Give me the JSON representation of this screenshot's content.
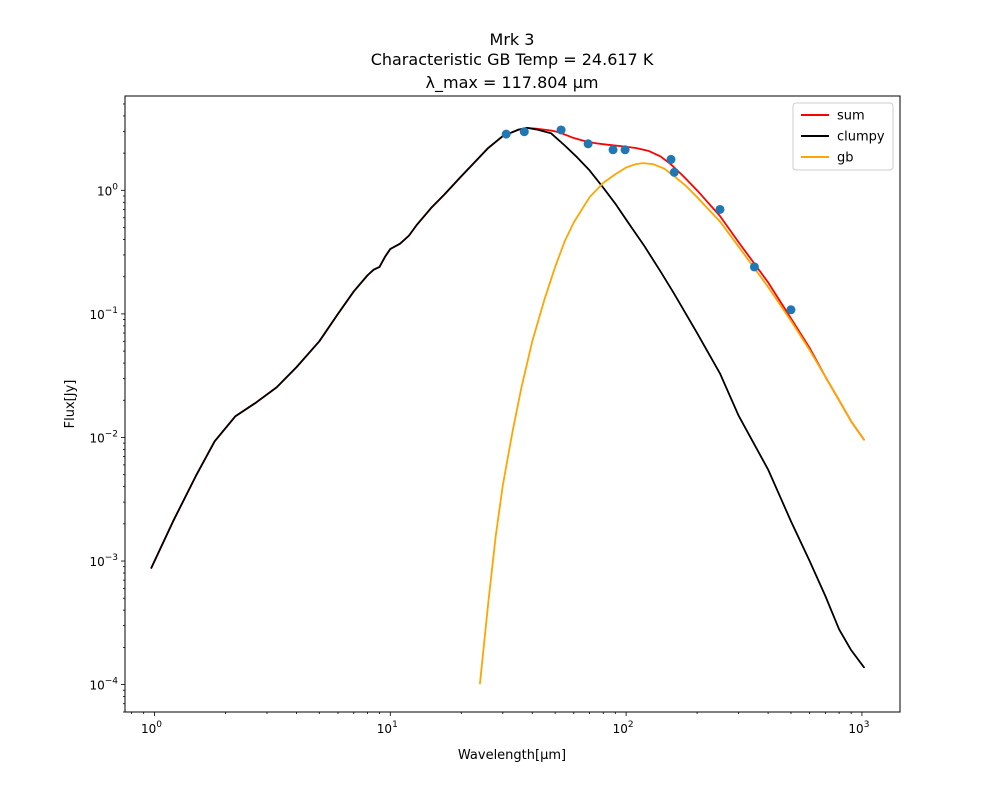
{
  "chart_data": {
    "type": "line",
    "title": [
      "Mrk 3",
      "Characteristic GB Temp = 24.617 K",
      "λ_max = 117.804 μm"
    ],
    "xlabel": "Wavelength[μm]",
    "ylabel": "Flux[Jy]",
    "xscale": "log",
    "yscale": "log",
    "xlim": [
      0.75,
      1450
    ],
    "ylim": [
      6e-05,
      5.8
    ],
    "grid": false,
    "legend_position": "top-right",
    "x_ticks": [
      {
        "value": 1,
        "base": "10",
        "exp": "0"
      },
      {
        "value": 10,
        "base": "10",
        "exp": "1"
      },
      {
        "value": 100,
        "base": "10",
        "exp": "2"
      },
      {
        "value": 1000,
        "base": "10",
        "exp": "3"
      }
    ],
    "y_ticks": [
      {
        "value": 0.0001,
        "base": "10",
        "exp": "−4"
      },
      {
        "value": 0.001,
        "base": "10",
        "exp": "−3"
      },
      {
        "value": 0.01,
        "base": "10",
        "exp": "−2"
      },
      {
        "value": 0.1,
        "base": "10",
        "exp": "−1"
      },
      {
        "value": 1,
        "base": "10",
        "exp": "0"
      }
    ],
    "series": [
      {
        "name": "sum",
        "color": "#ff0000",
        "points": [
          [
            0.97,
            0.00088
          ],
          [
            1.2,
            0.0021
          ],
          [
            1.5,
            0.0049
          ],
          [
            1.8,
            0.0093
          ],
          [
            2.2,
            0.0148
          ],
          [
            2.7,
            0.0192
          ],
          [
            3.3,
            0.0255
          ],
          [
            4.0,
            0.037
          ],
          [
            5.0,
            0.06
          ],
          [
            6.0,
            0.1
          ],
          [
            7.0,
            0.152
          ],
          [
            8.0,
            0.205
          ],
          [
            8.5,
            0.228
          ],
          [
            9.0,
            0.24
          ],
          [
            9.5,
            0.29
          ],
          [
            10.0,
            0.335
          ],
          [
            11.0,
            0.37
          ],
          [
            12.0,
            0.43
          ],
          [
            13.0,
            0.53
          ],
          [
            15.0,
            0.73
          ],
          [
            17.0,
            0.93
          ],
          [
            20.0,
            1.3
          ],
          [
            23.0,
            1.72
          ],
          [
            26.0,
            2.2
          ],
          [
            30.0,
            2.75
          ],
          [
            35.0,
            3.1
          ],
          [
            38.0,
            3.2
          ],
          [
            42.0,
            3.15
          ],
          [
            48.0,
            3.05
          ],
          [
            52.0,
            2.95
          ],
          [
            60.0,
            2.65
          ],
          [
            68.0,
            2.48
          ],
          [
            75.0,
            2.4
          ],
          [
            85.0,
            2.33
          ],
          [
            95.0,
            2.28
          ],
          [
            110.0,
            2.2
          ],
          [
            125.0,
            2.08
          ],
          [
            140.0,
            1.88
          ],
          [
            155.0,
            1.62
          ],
          [
            175.0,
            1.3
          ],
          [
            200.0,
            1.0
          ],
          [
            250.0,
            0.62
          ],
          [
            300.0,
            0.38
          ],
          [
            400.0,
            0.18
          ],
          [
            500.0,
            0.092
          ],
          [
            600.0,
            0.053
          ],
          [
            700.0,
            0.031
          ],
          [
            800.0,
            0.02
          ],
          [
            900.0,
            0.0135
          ],
          [
            1020.0,
            0.0096
          ]
        ]
      },
      {
        "name": "clumpy",
        "color": "#000000",
        "points": [
          [
            0.97,
            0.00088
          ],
          [
            1.2,
            0.0021
          ],
          [
            1.5,
            0.0049
          ],
          [
            1.8,
            0.0093
          ],
          [
            2.2,
            0.0148
          ],
          [
            2.7,
            0.0192
          ],
          [
            3.3,
            0.0255
          ],
          [
            4.0,
            0.037
          ],
          [
            5.0,
            0.06
          ],
          [
            6.0,
            0.1
          ],
          [
            7.0,
            0.152
          ],
          [
            8.0,
            0.205
          ],
          [
            8.5,
            0.228
          ],
          [
            9.0,
            0.24
          ],
          [
            9.5,
            0.29
          ],
          [
            10.0,
            0.335
          ],
          [
            11.0,
            0.37
          ],
          [
            12.0,
            0.43
          ],
          [
            13.0,
            0.53
          ],
          [
            15.0,
            0.73
          ],
          [
            17.0,
            0.93
          ],
          [
            20.0,
            1.3
          ],
          [
            23.0,
            1.72
          ],
          [
            26.0,
            2.2
          ],
          [
            30.0,
            2.75
          ],
          [
            35.0,
            3.1
          ],
          [
            38.0,
            3.2
          ],
          [
            42.0,
            3.1
          ],
          [
            48.0,
            2.9
          ],
          [
            55.0,
            2.3
          ],
          [
            62.0,
            1.85
          ],
          [
            70.0,
            1.45
          ],
          [
            80.0,
            1.05
          ],
          [
            90.0,
            0.78
          ],
          [
            100.0,
            0.58
          ],
          [
            120.0,
            0.35
          ],
          [
            140.0,
            0.22
          ],
          [
            160.0,
            0.145
          ],
          [
            200.0,
            0.07
          ],
          [
            250.0,
            0.033
          ],
          [
            300.0,
            0.015
          ],
          [
            400.0,
            0.0055
          ],
          [
            500.0,
            0.0021
          ],
          [
            600.0,
            0.001
          ],
          [
            700.0,
            0.00052
          ],
          [
            800.0,
            0.00028
          ],
          [
            900.0,
            0.00019
          ],
          [
            1020.0,
            0.000138
          ]
        ]
      },
      {
        "name": "gb",
        "color": "#ffa500",
        "points": [
          [
            24.0,
            0.000102
          ],
          [
            26.0,
            0.00045
          ],
          [
            28.0,
            0.0016
          ],
          [
            30.0,
            0.0041
          ],
          [
            33.0,
            0.0112
          ],
          [
            36.0,
            0.0255
          ],
          [
            40.0,
            0.06
          ],
          [
            45.0,
            0.13
          ],
          [
            50.0,
            0.24
          ],
          [
            55.0,
            0.39
          ],
          [
            60.0,
            0.55
          ],
          [
            70.0,
            0.88
          ],
          [
            80.0,
            1.15
          ],
          [
            90.0,
            1.35
          ],
          [
            100.0,
            1.53
          ],
          [
            110.0,
            1.63
          ],
          [
            118.0,
            1.66
          ],
          [
            130.0,
            1.63
          ],
          [
            145.0,
            1.5
          ],
          [
            160.0,
            1.3
          ],
          [
            180.0,
            1.08
          ],
          [
            200.0,
            0.88
          ],
          [
            250.0,
            0.56
          ],
          [
            300.0,
            0.35
          ],
          [
            400.0,
            0.165
          ],
          [
            500.0,
            0.088
          ],
          [
            600.0,
            0.051
          ],
          [
            700.0,
            0.031
          ],
          [
            800.0,
            0.02
          ],
          [
            900.0,
            0.0135
          ],
          [
            1020.0,
            0.0096
          ]
        ]
      }
    ],
    "scatter": {
      "color": "#1f77b4",
      "points": [
        [
          31.0,
          2.85
        ],
        [
          37.0,
          2.98
        ],
        [
          53.0,
          3.08
        ],
        [
          69.0,
          2.38
        ],
        [
          88.0,
          2.13
        ],
        [
          99.0,
          2.13
        ],
        [
          155.0,
          1.78
        ],
        [
          160.0,
          1.4
        ],
        [
          250.0,
          0.7
        ],
        [
          350.0,
          0.24
        ],
        [
          500.0,
          0.108
        ]
      ]
    }
  }
}
